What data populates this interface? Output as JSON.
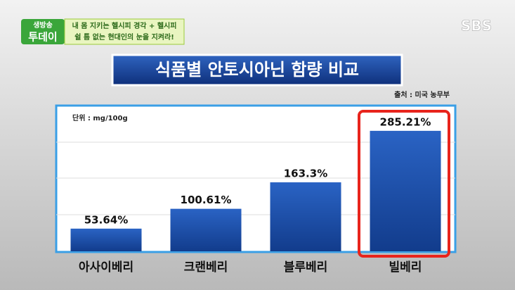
{
  "overlay": {
    "program": [
      "생방송",
      "투데이"
    ],
    "banner": [
      "내 몸 지키는 헬시피 경각 + 헬시피",
      "쉴 틈 없는 현대인의 눈을 지켜라!"
    ],
    "channel": "SBS"
  },
  "chart_data": {
    "type": "bar",
    "title": "식품별 안토시아닌 함량 비교",
    "source": "출처 : 미국 농무부",
    "unit": "단위 : mg/100g",
    "categories": [
      "아사이베리",
      "크랜베리",
      "블루베리",
      "빌베리"
    ],
    "values": [
      53.64,
      100.61,
      163.3,
      285.21
    ],
    "value_labels": [
      "53.64%",
      "100.61%",
      "163.3%",
      "285.21%"
    ],
    "color": "#1f4fa6",
    "ylim": [
      0,
      345
    ]
  }
}
